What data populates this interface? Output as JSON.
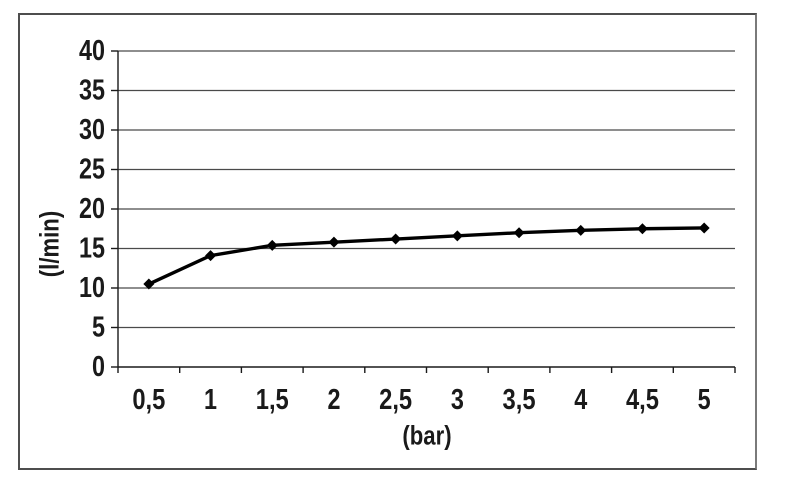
{
  "page": {
    "background": "#ffffff"
  },
  "frame": {
    "border_color": "#4d4d4d"
  },
  "chart_data": {
    "type": "line",
    "title": "",
    "xlabel": "(bar)",
    "ylabel": "(l/min)",
    "categories": [
      "0,5",
      "1",
      "1,5",
      "2",
      "2,5",
      "3",
      "3,5",
      "4",
      "4,5",
      "5"
    ],
    "x_values": [
      0.5,
      1,
      1.5,
      2,
      2.5,
      3,
      3.5,
      4,
      4.5,
      5
    ],
    "values": [
      10.5,
      14.1,
      15.4,
      15.8,
      16.2,
      16.6,
      17.0,
      17.3,
      17.5,
      17.6
    ],
    "ylim": [
      0,
      40
    ],
    "y_tick_step": 5,
    "y_tick_labels": [
      "0",
      "5",
      "10",
      "15",
      "20",
      "25",
      "30",
      "35",
      "40"
    ],
    "grid": "horizontal-only",
    "legend": "none",
    "marker": "diamond",
    "line_color": "#000000",
    "marker_color": "#000000",
    "grid_color": "#4a4a4a",
    "axis_color": "#1a1a1a",
    "text_color": "#1a1a1a",
    "decimal_separator": ","
  }
}
